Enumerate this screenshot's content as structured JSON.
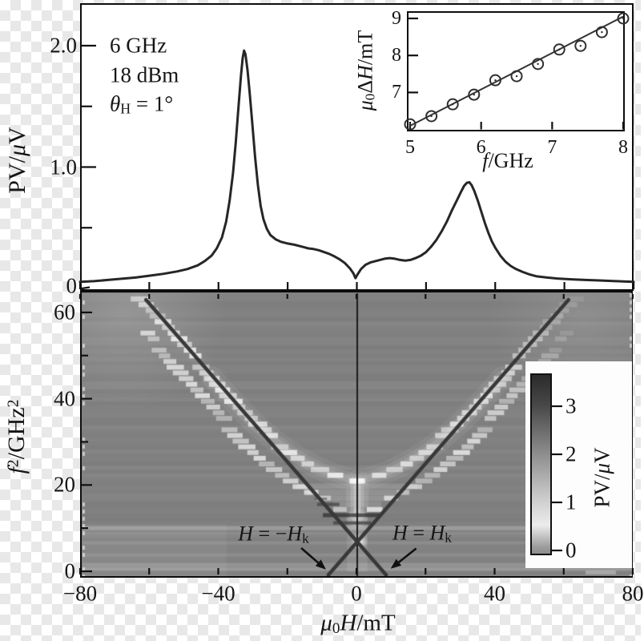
{
  "labels": {
    "top": {
      "ylabel": [
        {
          "t": "PV/"
        },
        {
          "t": "μ",
          "it": true
        },
        {
          "t": "V"
        }
      ],
      "annotations": [
        [
          {
            "t": "6 GHz"
          }
        ],
        [
          {
            "t": "18 dBm"
          }
        ],
        [
          {
            "t": "θ",
            "it": true
          },
          {
            "t": "H",
            "sub": true
          },
          {
            "t": " = 1°"
          }
        ]
      ],
      "ytick_labels": [
        {
          "v": 2,
          "t": "2.0"
        },
        {
          "v": 1,
          "t": "1.0"
        },
        {
          "v": 0,
          "t": "0"
        }
      ],
      "ytick_marks": [
        0,
        0.5,
        1,
        1.5,
        2
      ],
      "xtick_marks": [
        -80,
        -60,
        -40,
        -20,
        0,
        20,
        40,
        60,
        80
      ]
    },
    "inset": {
      "xlabel": [
        {
          "t": "f",
          "it": true
        },
        {
          "t": "/GHz"
        }
      ],
      "ylabel": [
        {
          "t": "μ",
          "it": true
        },
        {
          "t": "0",
          "sub": true
        },
        {
          "t": "Δ"
        },
        {
          "t": "H",
          "it": true
        },
        {
          "t": "/mT"
        }
      ],
      "xticks": [
        {
          "v": 5,
          "t": "5"
        },
        {
          "v": 6,
          "t": "6"
        },
        {
          "v": 7,
          "t": "7"
        },
        {
          "v": 8,
          "t": "8"
        }
      ],
      "yticks": [
        {
          "v": 9,
          "t": "9"
        },
        {
          "v": 8,
          "t": "8"
        },
        {
          "v": 7,
          "t": "7"
        }
      ]
    },
    "heat": {
      "xlabel": [
        {
          "t": "μ",
          "it": true
        },
        {
          "t": "0",
          "sub": true
        },
        {
          "t": "H",
          "it": true
        },
        {
          "t": "/mT"
        }
      ],
      "ylabel": [
        {
          "t": "f",
          "it": true
        },
        {
          "t": "2",
          "sup": true
        },
        {
          "t": "/GHz"
        },
        {
          "t": "2",
          "sup": true
        }
      ],
      "xticks": [
        {
          "v": -80,
          "t": "−80"
        },
        {
          "v": -40,
          "t": "−40"
        },
        {
          "v": 0,
          "t": "0"
        },
        {
          "v": 40,
          "t": "40"
        },
        {
          "v": 80,
          "t": "80"
        }
      ],
      "xtick_marks": [
        -80,
        -60,
        -40,
        -20,
        0,
        20,
        40,
        60,
        80
      ],
      "yticks": [
        {
          "v": 60,
          "t": "60"
        },
        {
          "v": 40,
          "t": "40"
        },
        {
          "v": 20,
          "t": "20"
        },
        {
          "v": 0,
          "t": "0"
        }
      ],
      "ytick_marks": [
        0,
        10,
        20,
        30,
        40,
        50,
        60
      ],
      "annotations": [
        {
          "parts": [
            {
              "t": "H",
              "it": true
            },
            {
              "t": " = −"
            },
            {
              "t": "H",
              "it": true
            },
            {
              "t": "k",
              "sub": true
            }
          ],
          "center_H": -24,
          "center_f2": 8.6,
          "arrow": {
            "from": [
              -16,
              5.4
            ],
            "to": [
              -8.8,
              0.4
            ]
          }
        },
        {
          "parts": [
            {
              "t": "H",
              "it": true
            },
            {
              "t": " = "
            },
            {
              "t": "H",
              "it": true
            },
            {
              "t": "k",
              "sub": true
            }
          ],
          "center_H": 19,
          "center_f2": 8.7,
          "arrow": {
            "from": [
              17.3,
              5.3
            ],
            "to": [
              9.9,
              0.6
            ]
          }
        }
      ]
    },
    "colorbar": {
      "label": [
        {
          "t": "PV/"
        },
        {
          "t": "μ",
          "it": true
        },
        {
          "t": "V"
        }
      ],
      "ticks": [
        {
          "v": 3,
          "t": "3"
        },
        {
          "v": 2,
          "t": "2"
        },
        {
          "v": 1,
          "t": "1"
        },
        {
          "v": 0,
          "t": "0"
        }
      ]
    }
  },
  "chart_data": [
    {
      "id": "spectrum",
      "type": "line",
      "title": "",
      "xlabel": "μ0H/mT",
      "ylabel": "PV/μV",
      "xlim": [
        -80,
        80
      ],
      "ylim": [
        0,
        2.37
      ],
      "conditions": {
        "frequency": "6 GHz",
        "power": "18 dBm",
        "field_angle": "θH = 1°"
      },
      "x": [
        -80,
        -76,
        -72,
        -68,
        -64,
        -60,
        -56,
        -52,
        -49,
        -46,
        -44,
        -42,
        -40.5,
        -39,
        -37.8,
        -36.8,
        -35.8,
        -35,
        -34.2,
        -33.5,
        -33,
        -32.6,
        -32.2,
        -31.6,
        -31,
        -30.2,
        -29.4,
        -28.6,
        -27.8,
        -27,
        -26,
        -25,
        -23.5,
        -22,
        -20,
        -18,
        -16,
        -14,
        -12.5,
        -11,
        -9.5,
        -8,
        -6.5,
        -5,
        -3.5,
        -2,
        -1,
        -0.4,
        0.3,
        1.2,
        2.5,
        4,
        6,
        8,
        9.5,
        11,
        12.5,
        14,
        15.5,
        17,
        18.5,
        20,
        21.5,
        23,
        24.5,
        26,
        27.5,
        29,
        30,
        31,
        31.8,
        32.5,
        33.2,
        34,
        35,
        36,
        37,
        38,
        39,
        40,
        41.5,
        43,
        44.5,
        46,
        48,
        50,
        52,
        55,
        58,
        62,
        66,
        70,
        75,
        80
      ],
      "y": [
        0.055,
        0.06,
        0.07,
        0.08,
        0.09,
        0.105,
        0.12,
        0.14,
        0.16,
        0.19,
        0.225,
        0.27,
        0.33,
        0.42,
        0.55,
        0.72,
        0.95,
        1.2,
        1.5,
        1.75,
        1.9,
        1.96,
        1.93,
        1.8,
        1.62,
        1.35,
        1.08,
        0.85,
        0.68,
        0.57,
        0.49,
        0.44,
        0.405,
        0.385,
        0.37,
        0.36,
        0.345,
        0.33,
        0.325,
        0.315,
        0.3,
        0.285,
        0.265,
        0.24,
        0.21,
        0.165,
        0.125,
        0.085,
        0.12,
        0.16,
        0.195,
        0.215,
        0.23,
        0.245,
        0.25,
        0.245,
        0.235,
        0.23,
        0.235,
        0.25,
        0.27,
        0.3,
        0.345,
        0.4,
        0.47,
        0.55,
        0.645,
        0.73,
        0.79,
        0.845,
        0.87,
        0.875,
        0.85,
        0.8,
        0.72,
        0.63,
        0.54,
        0.46,
        0.39,
        0.335,
        0.27,
        0.22,
        0.185,
        0.16,
        0.135,
        0.115,
        0.1,
        0.09,
        0.082,
        0.075,
        0.07,
        0.066,
        0.06,
        0.055
      ]
    },
    {
      "id": "linewidth-inset",
      "type": "scatter",
      "xlabel": "f/GHz",
      "ylabel": "μ0ΔH/mT",
      "xlim": [
        4.95,
        8.05
      ],
      "ylim": [
        5.95,
        9.2
      ],
      "xticks": [
        5,
        6,
        7,
        8
      ],
      "yticks": [
        7,
        8,
        9
      ],
      "x": [
        5.0,
        5.3,
        5.6,
        5.9,
        6.2,
        6.5,
        6.8,
        7.1,
        7.4,
        7.7,
        8.0
      ],
      "y": [
        6.14,
        6.36,
        6.68,
        6.94,
        7.33,
        7.44,
        7.77,
        8.16,
        8.26,
        8.63,
        9.0
      ],
      "fit_line": {
        "x": [
          5.0,
          8.0
        ],
        "y": [
          6.1,
          9.05
        ]
      }
    },
    {
      "id": "dispersion-heatmap",
      "type": "heatmap",
      "xlabel": "μ0H/mT",
      "ylabel": "f2/GHz2",
      "xlim": [
        -80,
        80
      ],
      "ylim": [
        -1.1,
        64.6
      ],
      "value_label": "PV/μV",
      "value_range": [
        0,
        3.65
      ],
      "background_color": "#828282",
      "resonance_upper_branch": {
        "H_abs": [
          0,
          5,
          10,
          15,
          20,
          25,
          30,
          35,
          40,
          45,
          50,
          55,
          60,
          65
        ],
        "f2": [
          21,
          22,
          23.5,
          25.5,
          28,
          31,
          34.5,
          38.5,
          43,
          47.5,
          52,
          56.5,
          61,
          65
        ]
      },
      "branch_separation_f2": 7,
      "anisotropy_field_mT": 8.4,
      "guide_lines": [
        {
          "from": [
            -61.5,
            63.0
          ],
          "to": [
            8.4,
            -0.75
          ]
        },
        {
          "from": [
            61.5,
            63.0
          ],
          "to": [
            -8.4,
            -0.75
          ]
        }
      ],
      "zero_field_line_H": 0,
      "light_streaks_f2": [
        [
          10.1,
          5,
          0.2
        ],
        [
          8.9,
          3,
          0.08
        ],
        [
          6.7,
          4,
          0.1
        ],
        [
          3.9,
          4,
          0.08
        ],
        [
          1.2,
          9,
          0.15
        ],
        [
          0.4,
          4,
          0.1
        ]
      ],
      "dark_bars": [
        [
          -11.7,
          -5.2,
          15.6,
          4
        ],
        [
          -10,
          6.4,
          13.1,
          5
        ],
        [
          -7,
          4,
          11.3,
          4
        ],
        [
          -12.5,
          -8.8,
          16.9,
          3
        ]
      ]
    }
  ]
}
